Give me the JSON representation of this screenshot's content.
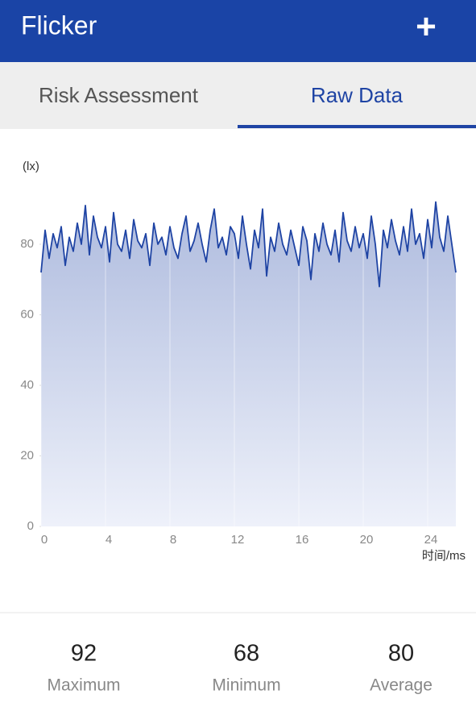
{
  "header": {
    "title": "Flicker",
    "action": "+"
  },
  "tabs": [
    "Risk Assessment",
    "Raw Data"
  ],
  "chart_data": {
    "type": "area",
    "y_label": "(lx)",
    "x_label": "时间/ms",
    "color": "#1f44a4",
    "grid": true,
    "xlim": [
      0,
      25.75
    ],
    "xticks": [
      0,
      4,
      8,
      12,
      16,
      20,
      24
    ],
    "ylim": [
      0,
      100
    ],
    "yticks": [
      0,
      20,
      40,
      60,
      80
    ],
    "x": [
      0,
      0.25,
      0.5,
      0.75,
      1,
      1.25,
      1.5,
      1.75,
      2,
      2.25,
      2.5,
      2.75,
      3,
      3.25,
      3.5,
      3.75,
      4,
      4.25,
      4.5,
      4.75,
      5,
      5.25,
      5.5,
      5.75,
      6,
      6.25,
      6.5,
      6.75,
      7,
      7.25,
      7.5,
      7.75,
      8,
      8.25,
      8.5,
      8.75,
      9,
      9.25,
      9.5,
      9.75,
      10,
      10.25,
      10.5,
      10.75,
      11,
      11.25,
      11.5,
      11.75,
      12,
      12.25,
      12.5,
      12.75,
      13,
      13.25,
      13.5,
      13.75,
      14,
      14.25,
      14.5,
      14.75,
      15,
      15.25,
      15.5,
      15.75,
      16,
      16.25,
      16.5,
      16.75,
      17,
      17.25,
      17.5,
      17.75,
      18,
      18.25,
      18.5,
      18.75,
      19,
      19.25,
      19.5,
      19.75,
      20,
      20.25,
      20.5,
      20.75,
      21,
      21.25,
      21.5,
      21.75,
      22,
      22.25,
      22.5,
      22.75,
      23,
      23.25,
      23.5,
      23.75,
      24,
      24.25,
      24.5,
      24.75,
      25,
      25.25,
      25.5,
      25.75
    ],
    "values": [
      72,
      84,
      76,
      83,
      79,
      85,
      74,
      82,
      78,
      86,
      80,
      91,
      77,
      88,
      82,
      79,
      85,
      75,
      89,
      80,
      78,
      84,
      76,
      87,
      81,
      79,
      83,
      74,
      86,
      80,
      82,
      77,
      85,
      79,
      76,
      83,
      88,
      78,
      81,
      86,
      80,
      75,
      84,
      90,
      79,
      82,
      77,
      85,
      83,
      76,
      88,
      80,
      73,
      84,
      79,
      90,
      71,
      82,
      78,
      86,
      80,
      77,
      84,
      79,
      74,
      85,
      81,
      70,
      83,
      78,
      86,
      80,
      77,
      84,
      75,
      89,
      81,
      78,
      85,
      79,
      83,
      76,
      88,
      80,
      68,
      84,
      79,
      87,
      81,
      77,
      85,
      78,
      90,
      80,
      83,
      76,
      87,
      79,
      92,
      82,
      78,
      88,
      80,
      72
    ]
  },
  "stats": [
    {
      "value": "92",
      "label": "Maximum"
    },
    {
      "value": "68",
      "label": "Minimum"
    },
    {
      "value": "80",
      "label": "Average"
    }
  ]
}
